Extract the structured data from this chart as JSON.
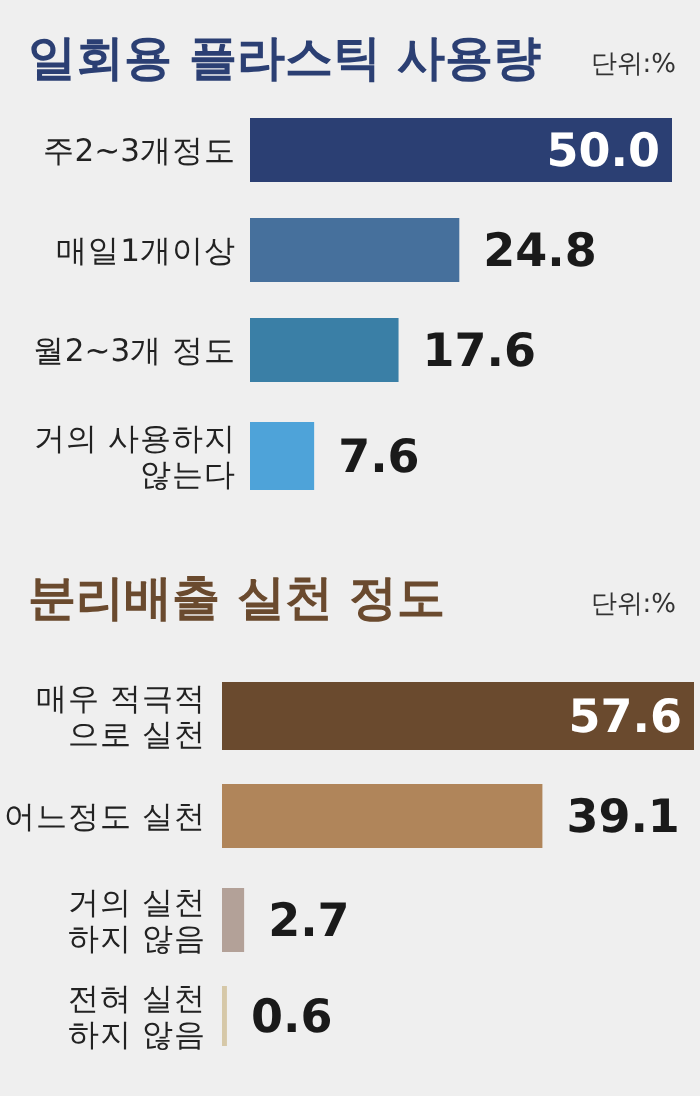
{
  "chart_data": [
    {
      "type": "bar",
      "orientation": "horizontal",
      "title": "일회용 플라스틱 사용량",
      "annotations": [
        "단위:%"
      ],
      "categories": [
        "주2~3개정도",
        "매일1개이상",
        "월2~3개 정도",
        "거의 사용하지\n않는다"
      ],
      "values": [
        50.0,
        24.8,
        17.6,
        7.6
      ],
      "colors": [
        "#2b3f73",
        "#46709c",
        "#3a7fa6",
        "#4ea3d9"
      ],
      "value_labels": [
        "50.0",
        "24.8",
        "17.6",
        "7.6"
      ]
    },
    {
      "type": "bar",
      "orientation": "horizontal",
      "title": "분리배출 실천 정도",
      "annotations": [
        "단위:%"
      ],
      "categories": [
        "매우 적극적\n으로 실천",
        "어느정도 실천",
        "거의 실천\n하지 않음",
        "전혀 실천\n하지 않음"
      ],
      "values": [
        57.6,
        39.1,
        2.7,
        0.6
      ],
      "colors": [
        "#6a4a2e",
        "#b0855a",
        "#b3a198",
        "#d6c8a8"
      ],
      "value_labels": [
        "57.6",
        "39.1",
        "2.7",
        "0.6"
      ]
    }
  ]
}
